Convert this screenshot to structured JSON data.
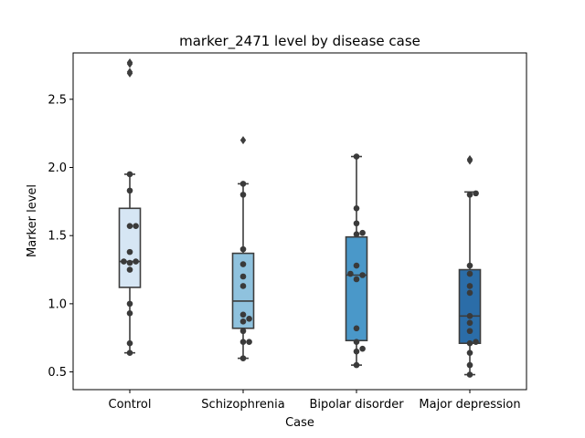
{
  "chart_data": {
    "type": "box",
    "title": "marker_2471 level by disease case",
    "xlabel": "Case",
    "ylabel": "Marker level",
    "ylim": [
      0.37,
      2.84
    ],
    "yticks": [
      0.5,
      1.0,
      1.5,
      2.0,
      2.5
    ],
    "ytick_labels": [
      "0.5",
      "1.0",
      "1.5",
      "2.0",
      "2.5"
    ],
    "grid": false,
    "categories": [
      "Control",
      "Schizophrenia",
      "Bipolar disorder",
      "Major depression"
    ],
    "colors": [
      "#d6e6f4",
      "#8fc2de",
      "#4a98c9",
      "#2b6da8"
    ],
    "boxes": [
      {
        "whisker_low": 0.64,
        "q1": 1.12,
        "median": 1.31,
        "q3": 1.7,
        "whisker_high": 1.95,
        "outliers": [
          2.69,
          2.7,
          2.77,
          2.76
        ]
      },
      {
        "whisker_low": 0.6,
        "q1": 0.82,
        "median": 1.02,
        "q3": 1.37,
        "whisker_high": 1.88,
        "outliers": [
          2.2
        ]
      },
      {
        "whisker_low": 0.55,
        "q1": 0.73,
        "median": 1.21,
        "q3": 1.49,
        "whisker_high": 2.08,
        "outliers": []
      },
      {
        "whisker_low": 0.48,
        "q1": 0.71,
        "median": 0.91,
        "q3": 1.25,
        "whisker_high": 1.82,
        "outliers": [
          2.05,
          2.06
        ]
      }
    ],
    "points": [
      [
        0.64,
        0.71,
        0.93,
        1.0,
        1.25,
        1.3,
        1.31,
        1.31,
        1.38,
        1.57,
        1.57,
        1.83,
        1.95
      ],
      [
        0.6,
        0.72,
        0.72,
        0.8,
        0.87,
        0.89,
        0.92,
        1.13,
        1.2,
        1.29,
        1.4,
        1.8,
        1.88
      ],
      [
        0.55,
        0.65,
        0.67,
        0.72,
        0.82,
        1.18,
        1.21,
        1.22,
        1.28,
        1.51,
        1.52,
        1.59,
        1.7,
        2.08
      ],
      [
        0.48,
        0.55,
        0.64,
        0.71,
        0.72,
        0.8,
        0.86,
        0.91,
        1.08,
        1.13,
        1.22,
        1.28,
        1.8,
        1.81
      ]
    ]
  }
}
